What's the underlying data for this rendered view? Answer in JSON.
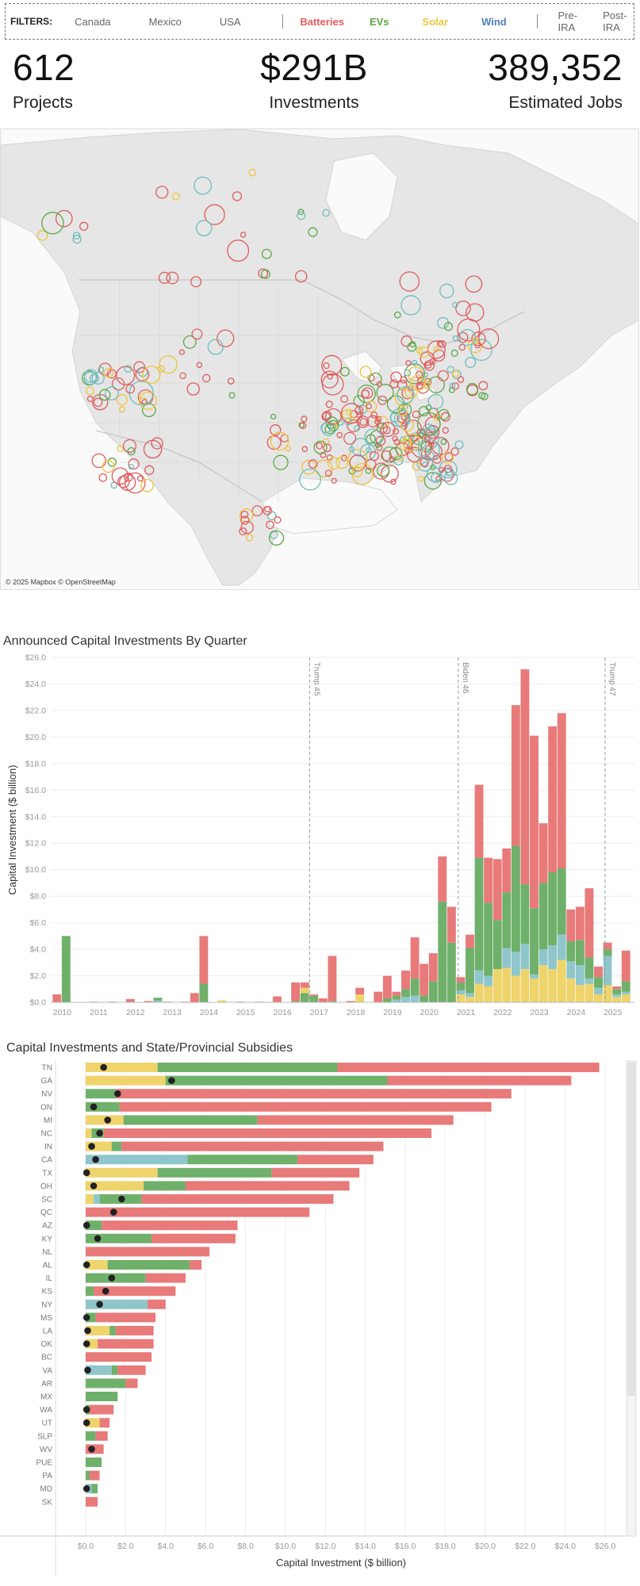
{
  "filters": {
    "label": "FILTERS:",
    "countries": [
      "Canada",
      "Mexico",
      "USA"
    ],
    "technologies": [
      {
        "name": "Batteries",
        "color": "#e05c5c"
      },
      {
        "name": "EVs",
        "color": "#5aa846"
      },
      {
        "name": "Solar",
        "color": "#efc43d"
      },
      {
        "name": "Wind",
        "color": "#4f7fb5"
      }
    ],
    "periods": [
      "Pre-IRA",
      "Post-IRA"
    ]
  },
  "kpis": [
    {
      "value": "612",
      "label": "Projects"
    },
    {
      "value": "$291B",
      "label": "Investments"
    },
    {
      "value": "389,352",
      "label": "Estimated Jobs"
    }
  ],
  "map": {
    "attribution": "© 2025 Mapbox © OpenStreetMap",
    "colors": {
      "batteries": "#e05c5c",
      "evs": "#5aa846",
      "solar": "#efc43d",
      "storage": "#6fbdbd"
    }
  },
  "chart_data": [
    {
      "type": "bar",
      "title": "Announced Capital Investments By Quarter",
      "ylabel": "Capital Investment ($ billion)",
      "xlabel": "",
      "ylim": [
        0,
        26
      ],
      "y_ticks": [
        "$0.0",
        "$2.0",
        "$4.0",
        "$6.0",
        "$8.0",
        "$10.0",
        "$12.0",
        "$14.0",
        "$16.0",
        "$18.0",
        "$20.0",
        "$22.0",
        "$24.0",
        "$26.0"
      ],
      "x_ticks": [
        "2010",
        "2011",
        "2012",
        "2013",
        "2014",
        "2015",
        "2016",
        "2017",
        "2018",
        "2019",
        "2020",
        "2021",
        "2022",
        "2023",
        "2024",
        "2025"
      ],
      "stacked": true,
      "series_colors": {
        "batteries": "#e87a7a",
        "evs": "#6fb06a",
        "solar": "#efd36b",
        "storage": "#8fc6cc"
      },
      "annotations": [
        {
          "label": "Trump 45",
          "x": 2017.0
        },
        {
          "label": "Biden 46",
          "x": 2021.05
        },
        {
          "label": "Trump 47",
          "x": 2025.05
        }
      ],
      "quarters": [
        {
          "x": 2010.0,
          "batteries": 0.6,
          "evs": 0,
          "solar": 0,
          "storage": 0
        },
        {
          "x": 2010.25,
          "batteries": 0,
          "evs": 5.0,
          "solar": 0,
          "storage": 0
        },
        {
          "x": 2011.0,
          "batteries": 0.05,
          "evs": 0,
          "solar": 0,
          "storage": 0
        },
        {
          "x": 2011.5,
          "batteries": 0.05,
          "evs": 0,
          "solar": 0,
          "storage": 0
        },
        {
          "x": 2012.0,
          "batteries": 0.25,
          "evs": 0,
          "solar": 0,
          "storage": 0
        },
        {
          "x": 2012.5,
          "batteries": 0.1,
          "evs": 0,
          "solar": 0,
          "storage": 0
        },
        {
          "x": 2012.75,
          "batteries": 0,
          "evs": 0.2,
          "solar": 0,
          "storage": 0.15
        },
        {
          "x": 2013.0,
          "batteries": 0.05,
          "evs": 0,
          "solar": 0,
          "storage": 0
        },
        {
          "x": 2013.5,
          "batteries": 0.05,
          "evs": 0,
          "solar": 0,
          "storage": 0
        },
        {
          "x": 2013.75,
          "batteries": 0.7,
          "evs": 0,
          "solar": 0,
          "storage": 0
        },
        {
          "x": 2014.0,
          "batteries": 3.6,
          "evs": 1.4,
          "solar": 0,
          "storage": 0
        },
        {
          "x": 2014.5,
          "batteries": 0,
          "evs": 0,
          "solar": 0.15,
          "storage": 0
        },
        {
          "x": 2015.0,
          "batteries": 0.05,
          "evs": 0,
          "solar": 0,
          "storage": 0
        },
        {
          "x": 2015.5,
          "batteries": 0.05,
          "evs": 0,
          "solar": 0,
          "storage": 0
        },
        {
          "x": 2016.0,
          "batteries": 0.45,
          "evs": 0,
          "solar": 0,
          "storage": 0
        },
        {
          "x": 2016.5,
          "batteries": 1.4,
          "evs": 0.1,
          "solar": 0,
          "storage": 0
        },
        {
          "x": 2016.75,
          "batteries": 0.4,
          "evs": 0.7,
          "solar": 0.4,
          "storage": 0
        },
        {
          "x": 2017.0,
          "batteries": 0.1,
          "evs": 0.5,
          "solar": 0,
          "storage": 0
        },
        {
          "x": 2017.25,
          "batteries": 0.3,
          "evs": 0,
          "solar": 0,
          "storage": 0
        },
        {
          "x": 2017.5,
          "batteries": 3.4,
          "evs": 0.1,
          "solar": 0,
          "storage": 0
        },
        {
          "x": 2018.0,
          "batteries": 0.1,
          "evs": 0,
          "solar": 0,
          "storage": 0
        },
        {
          "x": 2018.25,
          "batteries": 0.5,
          "evs": 0,
          "solar": 0.6,
          "storage": 0
        },
        {
          "x": 2018.75,
          "batteries": 0.8,
          "evs": 0,
          "solar": 0,
          "storage": 0
        },
        {
          "x": 2019.0,
          "batteries": 1.7,
          "evs": 0.3,
          "solar": 0,
          "storage": 0
        },
        {
          "x": 2019.25,
          "batteries": 0.3,
          "evs": 0.3,
          "solar": 0,
          "storage": 0.2
        },
        {
          "x": 2019.5,
          "batteries": 1.4,
          "evs": 0.6,
          "solar": 0,
          "storage": 0.4
        },
        {
          "x": 2019.75,
          "batteries": 3.1,
          "evs": 1.3,
          "solar": 0,
          "storage": 0.5
        },
        {
          "x": 2020.0,
          "batteries": 2.4,
          "evs": 0.5,
          "solar": 0,
          "storage": 0
        },
        {
          "x": 2020.25,
          "batteries": 2.1,
          "evs": 1.6,
          "solar": 0,
          "storage": 0
        },
        {
          "x": 2020.5,
          "batteries": 3.4,
          "evs": 7.6,
          "solar": 0,
          "storage": 0
        },
        {
          "x": 2020.75,
          "batteries": 2.7,
          "evs": 4.5,
          "solar": 0,
          "storage": 0
        },
        {
          "x": 2021.0,
          "batteries": 0.4,
          "evs": 0.6,
          "solar": 0.6,
          "storage": 0.3
        },
        {
          "x": 2021.25,
          "batteries": 1.0,
          "evs": 3.4,
          "solar": 0.4,
          "storage": 0.3
        },
        {
          "x": 2021.5,
          "batteries": 5.5,
          "evs": 8.5,
          "solar": 1.4,
          "storage": 1.0
        },
        {
          "x": 2021.75,
          "batteries": 3.4,
          "evs": 5.5,
          "solar": 1.2,
          "storage": 0.8
        },
        {
          "x": 2022.0,
          "batteries": 4.6,
          "evs": 3.7,
          "solar": 2.5,
          "storage": 0
        },
        {
          "x": 2022.25,
          "batteries": 3.3,
          "evs": 4.2,
          "solar": 2.6,
          "storage": 1.5
        },
        {
          "x": 2022.5,
          "batteries": 10.6,
          "evs": 8.0,
          "solar": 2.0,
          "storage": 1.8
        },
        {
          "x": 2022.75,
          "batteries": 16.2,
          "evs": 4.5,
          "solar": 2.5,
          "storage": 1.9
        },
        {
          "x": 2023.0,
          "batteries": 13.0,
          "evs": 5.0,
          "solar": 1.8,
          "storage": 0.3
        },
        {
          "x": 2023.25,
          "batteries": 4.5,
          "evs": 5.0,
          "solar": 2.8,
          "storage": 1.2
        },
        {
          "x": 2023.5,
          "batteries": 11.0,
          "evs": 5.5,
          "solar": 2.5,
          "storage": 1.8
        },
        {
          "x": 2023.75,
          "batteries": 11.7,
          "evs": 5.0,
          "solar": 3.2,
          "storage": 1.9
        },
        {
          "x": 2024.0,
          "batteries": 2.4,
          "evs": 1.5,
          "solar": 1.8,
          "storage": 1.3
        },
        {
          "x": 2024.25,
          "batteries": 2.5,
          "evs": 1.9,
          "solar": 1.3,
          "storage": 1.5
        },
        {
          "x": 2024.5,
          "batteries": 5.2,
          "evs": 1.6,
          "solar": 1.4,
          "storage": 0.4
        },
        {
          "x": 2024.75,
          "batteries": 0.8,
          "evs": 0.8,
          "solar": 0.6,
          "storage": 0.5
        },
        {
          "x": 2025.0,
          "batteries": 0.5,
          "evs": 0.5,
          "solar": 1.3,
          "storage": 2.2
        },
        {
          "x": 2025.25,
          "batteries": 0.2,
          "evs": 0.4,
          "solar": 0.4,
          "storage": 0.2
        },
        {
          "x": 2025.5,
          "batteries": 2.3,
          "evs": 0.8,
          "solar": 0.6,
          "storage": 0.2
        }
      ]
    },
    {
      "type": "bar",
      "orientation": "horizontal",
      "title": "Capital Investments and State/Provincial Subsidies",
      "xlabel": "Capital Investment ($ billion)",
      "ylabel": "",
      "xlim": [
        -1.5,
        27.0
      ],
      "x_ticks": [
        "$0.0",
        "$2.0",
        "$4.0",
        "$6.0",
        "$8.0",
        "$10.0",
        "$12.0",
        "$14.0",
        "$16.0",
        "$18.0",
        "$20.0",
        "$22.0",
        "$24.0",
        "$26.0"
      ],
      "stacked": true,
      "series_colors": {
        "batteries": "#e87a7a",
        "evs": "#6fb06a",
        "solar": "#efd36b",
        "storage": "#8fc6cc"
      },
      "rows": [
        {
          "state": "TN",
          "solar": 3.6,
          "evs": 9.0,
          "storage": 0,
          "batteries": 13.1,
          "subsidy": 0.9
        },
        {
          "state": "GA",
          "solar": 4.0,
          "evs": 11.1,
          "storage": 0,
          "batteries": 9.2,
          "subsidy": 4.3
        },
        {
          "state": "NV",
          "solar": 0,
          "evs": 1.5,
          "storage": 0,
          "batteries": 19.8,
          "subsidy": 1.6
        },
        {
          "state": "ON",
          "solar": 0,
          "evs": 1.7,
          "storage": 0,
          "batteries": 18.6,
          "subsidy": 0.4
        },
        {
          "state": "MI",
          "solar": 1.9,
          "evs": 6.7,
          "storage": 0,
          "batteries": 9.8,
          "subsidy": 1.1
        },
        {
          "state": "NC",
          "solar": 0.3,
          "evs": 0.6,
          "storage": 0,
          "batteries": 16.4,
          "subsidy": 0.7
        },
        {
          "state": "IN",
          "solar": 1.3,
          "evs": 0.5,
          "storage": 0,
          "batteries": 13.1,
          "subsidy": 0.3
        },
        {
          "state": "CA",
          "solar": 0,
          "evs": 5.5,
          "storage": 5.1,
          "batteries": 3.8,
          "subsidy": 0.5
        },
        {
          "state": "TX",
          "solar": 3.6,
          "evs": 5.7,
          "storage": 0,
          "batteries": 4.4,
          "subsidy": 0.05
        },
        {
          "state": "OH",
          "solar": 2.9,
          "evs": 2.1,
          "storage": 0,
          "batteries": 8.2,
          "subsidy": 0.4
        },
        {
          "state": "SC",
          "solar": 0.4,
          "evs": 2.1,
          "storage": 0.3,
          "batteries": 9.6,
          "subsidy": 1.8
        },
        {
          "state": "QC",
          "solar": 0,
          "evs": 0,
          "storage": 0,
          "batteries": 11.2,
          "subsidy": 1.4
        },
        {
          "state": "AZ",
          "solar": 0,
          "evs": 0.8,
          "storage": 0,
          "batteries": 6.8,
          "subsidy": 0.05
        },
        {
          "state": "KY",
          "solar": 0,
          "evs": 3.3,
          "storage": 0,
          "batteries": 4.2,
          "subsidy": 0.6
        },
        {
          "state": "NL",
          "solar": 0,
          "evs": 0,
          "storage": 0,
          "batteries": 6.2,
          "subsidy": 0
        },
        {
          "state": "AL",
          "solar": 1.1,
          "evs": 4.1,
          "storage": 0,
          "batteries": 0.6,
          "subsidy": 0.05
        },
        {
          "state": "IL",
          "solar": 0,
          "evs": 3.0,
          "storage": 0,
          "batteries": 2.0,
          "subsidy": 1.3
        },
        {
          "state": "KS",
          "solar": 0,
          "evs": 0.4,
          "storage": 0,
          "batteries": 4.1,
          "subsidy": 1.0
        },
        {
          "state": "NY",
          "solar": 0,
          "evs": 0,
          "storage": 3.1,
          "batteries": 0.9,
          "subsidy": 0.7
        },
        {
          "state": "MS",
          "solar": 0,
          "evs": 0.5,
          "storage": 0,
          "batteries": 3.0,
          "subsidy": 0.05
        },
        {
          "state": "LA",
          "solar": 1.2,
          "evs": 0.3,
          "storage": 0,
          "batteries": 1.9,
          "subsidy": 0.1
        },
        {
          "state": "OK",
          "solar": 0.6,
          "evs": 0,
          "storage": 0,
          "batteries": 2.8,
          "subsidy": 0.05
        },
        {
          "state": "BC",
          "solar": 0,
          "evs": 0,
          "storage": 0,
          "batteries": 3.3,
          "subsidy": 0
        },
        {
          "state": "VA",
          "solar": 0,
          "evs": 0.3,
          "storage": 1.3,
          "batteries": 1.4,
          "subsidy": 0.1
        },
        {
          "state": "AR",
          "solar": 0,
          "evs": 2.0,
          "storage": 0,
          "batteries": 0.6,
          "subsidy": 0
        },
        {
          "state": "MX",
          "solar": 0,
          "evs": 1.6,
          "storage": 0,
          "batteries": 0,
          "subsidy": 0
        },
        {
          "state": "WA",
          "solar": 0,
          "evs": 0.2,
          "storage": 0,
          "batteries": 1.2,
          "subsidy": 0.05
        },
        {
          "state": "UT",
          "solar": 0.7,
          "evs": 0,
          "storage": 0,
          "batteries": 0.5,
          "subsidy": 0.05
        },
        {
          "state": "SLP",
          "solar": 0,
          "evs": 0.5,
          "storage": 0,
          "batteries": 0.6,
          "subsidy": 0
        },
        {
          "state": "WV",
          "solar": 0,
          "evs": 0,
          "storage": 0,
          "batteries": 0.9,
          "subsidy": 0.3
        },
        {
          "state": "PUE",
          "solar": 0,
          "evs": 0.8,
          "storage": 0,
          "batteries": 0,
          "subsidy": 0
        },
        {
          "state": "PA",
          "solar": 0,
          "evs": 0.2,
          "storage": 0,
          "batteries": 0.5,
          "subsidy": 0
        },
        {
          "state": "MD",
          "solar": 0,
          "evs": 0.3,
          "storage": 0.3,
          "batteries": 0,
          "subsidy": 0.05
        },
        {
          "state": "SK",
          "solar": 0,
          "evs": 0,
          "storage": 0,
          "batteries": 0.6,
          "subsidy": 0
        }
      ]
    }
  ]
}
